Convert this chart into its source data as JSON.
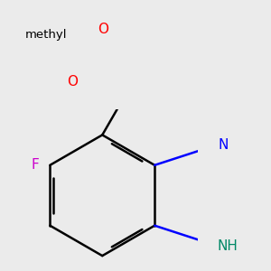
{
  "background_color": "#ebebeb",
  "bond_color": "#000000",
  "bond_width": 1.8,
  "dbo": 0.018,
  "atom_colors": {
    "O": "#ff0000",
    "N": "#0000ff",
    "F": "#cc00cc",
    "NH": "#008866",
    "C": "#000000"
  },
  "font_size_atom": 11,
  "font_size_methyl": 9.5
}
